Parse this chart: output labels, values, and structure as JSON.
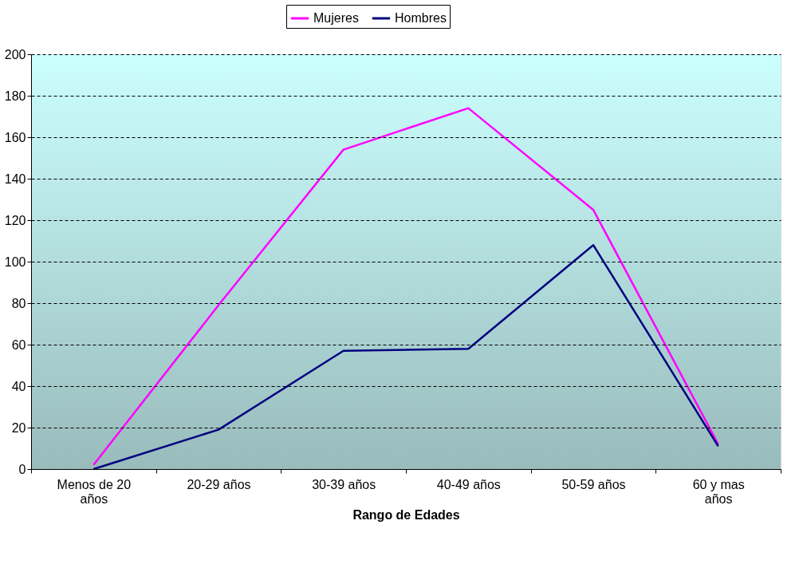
{
  "chart_data": {
    "type": "line",
    "xlabel": "Rango de Edades",
    "categories": [
      "Menos de 20 años",
      "20-29 años",
      "30-39 años",
      "40-49 años",
      "50-59 años",
      "60 y mas años"
    ],
    "series": [
      {
        "name": "Mujeres",
        "color": "#ff00ff",
        "values": [
          2,
          79,
          154,
          174,
          125,
          12
        ]
      },
      {
        "name": "Hombres",
        "color": "#000080",
        "values": [
          0,
          19,
          57,
          58,
          108,
          11
        ]
      }
    ],
    "ylim": [
      0,
      200
    ],
    "yticks": [
      0,
      20,
      40,
      60,
      80,
      100,
      120,
      140,
      160,
      180,
      200
    ],
    "grid": "y",
    "legend": "top",
    "marker": "none",
    "line_style": "solid"
  }
}
